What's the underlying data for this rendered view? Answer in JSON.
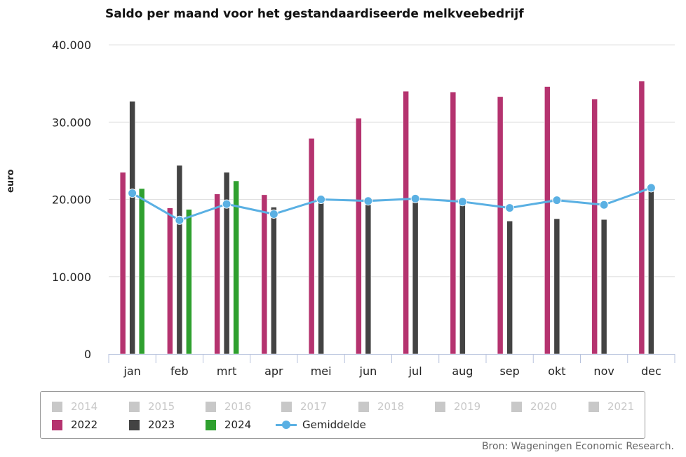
{
  "chart_data": {
    "type": "bar",
    "title": "Saldo per maand voor het gestandaardiseerde melkveebedrijf",
    "ylabel": "euro",
    "ylim": [
      0,
      40000
    ],
    "yticks": [
      "0",
      "10.000",
      "20.000",
      "30.000",
      "40.000"
    ],
    "ytick_values": [
      0,
      10000,
      20000,
      30000,
      40000
    ],
    "categories": [
      "jan",
      "feb",
      "mrt",
      "apr",
      "mei",
      "jun",
      "jul",
      "aug",
      "sep",
      "okt",
      "nov",
      "dec"
    ],
    "series": [
      {
        "name": "2022",
        "color": "#b5336f",
        "values": [
          23500,
          18900,
          20700,
          20600,
          27900,
          30500,
          34000,
          33900,
          33300,
          34600,
          33000,
          35300
        ]
      },
      {
        "name": "2023",
        "color": "#434343",
        "values": [
          32700,
          24400,
          23500,
          19000,
          20400,
          20000,
          20000,
          19600,
          17200,
          17500,
          17400,
          21800
        ]
      },
      {
        "name": "2024",
        "color": "#2fa02f",
        "values": [
          21400,
          18700,
          22400,
          null,
          null,
          null,
          null,
          null,
          null,
          null,
          null,
          null
        ]
      }
    ],
    "line_series": {
      "name": "Gemiddelde",
      "color": "#5ab0e3",
      "values": [
        20800,
        17300,
        19400,
        18100,
        20000,
        19800,
        20100,
        19700,
        18900,
        19900,
        19300,
        21500
      ]
    },
    "legend": {
      "placement": "bottom",
      "inactive": [
        "2014",
        "2015",
        "2016",
        "2017",
        "2018",
        "2019",
        "2020",
        "2021"
      ],
      "inactive_color": "#c8c8c8"
    },
    "grid": true
  },
  "source": "Bron: Wageningen Economic Research."
}
